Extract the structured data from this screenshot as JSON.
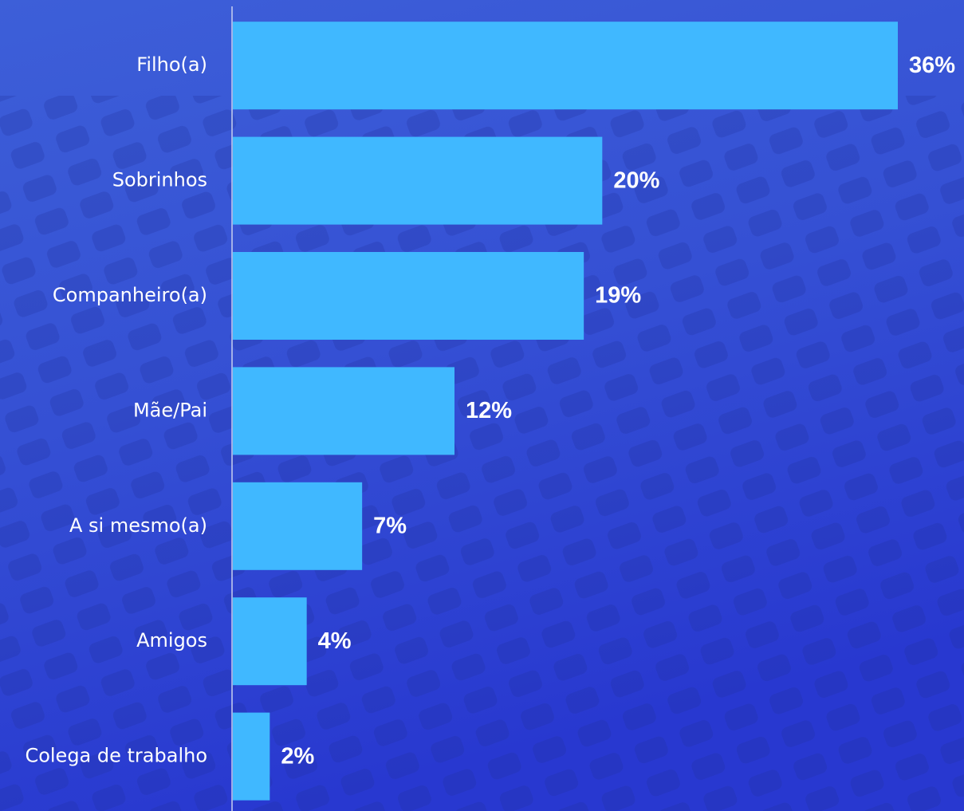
{
  "chart_data": {
    "type": "bar",
    "orientation": "horizontal",
    "categories": [
      "Filho(a)",
      "Sobrinhos",
      "Companheiro(a)",
      "Mãe/Pai",
      "A si mesmo(a)",
      "Amigos",
      "Colega de trabalho"
    ],
    "values": [
      36,
      20,
      19,
      12,
      7,
      4,
      2
    ],
    "value_labels": [
      "36%",
      "20%",
      "19%",
      "12%",
      "7%",
      "4%",
      "2%"
    ],
    "color": "#40b8ff"
  }
}
